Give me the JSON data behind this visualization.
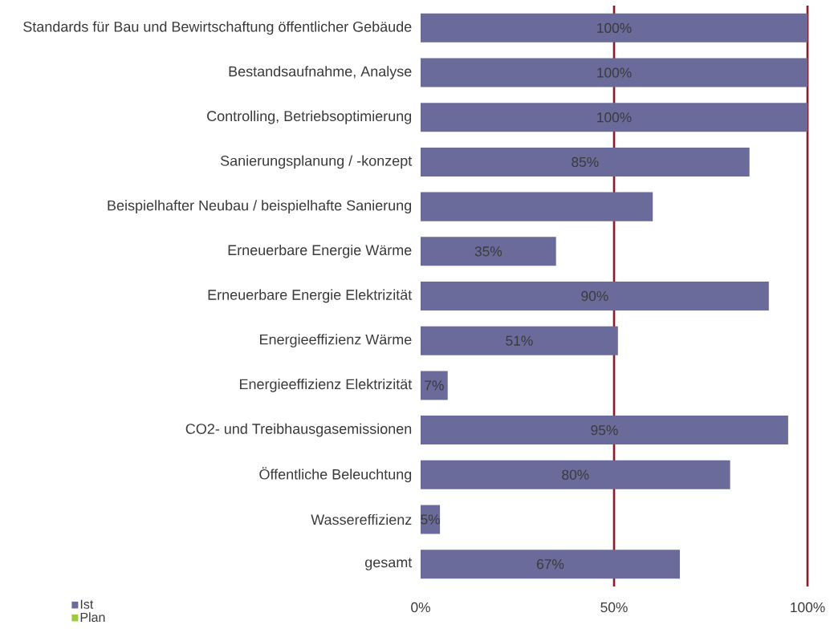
{
  "chart_data": {
    "type": "bar",
    "orientation": "horizontal",
    "categories": [
      "Standards für Bau und Bewirtschaftung öffentlicher Gebäude",
      "Bestandsaufnahme, Analyse",
      "Controlling, Betriebsoptimierung",
      "Sanierungsplanung / -konzept",
      "Beispielhafter Neubau / beispielhafte Sanierung",
      "Erneuerbare Energie Wärme",
      "Erneuerbare Energie Elektrizität",
      "Energieeffizienz Wärme",
      "Energieeffizienz Elektrizität",
      "CO2- und Treibhausgasemissionen",
      "Öffentliche Beleuchtung",
      "Wassereffizienz",
      "gesamt"
    ],
    "series": [
      {
        "name": "Ist",
        "color": "#6b6b9b",
        "values": [
          100,
          100,
          100,
          85,
          60,
          35,
          90,
          51,
          7,
          95,
          80,
          5,
          67
        ],
        "value_labels": [
          "100%",
          "100%",
          "100%",
          "85%",
          null,
          "35%",
          "90%",
          "51%",
          "7%",
          "95%",
          "80%",
          "5%",
          "67%"
        ]
      },
      {
        "name": "Plan",
        "color": "#9ccc3c",
        "values": [
          null,
          null,
          null,
          null,
          null,
          null,
          null,
          null,
          null,
          null,
          null,
          null,
          null
        ]
      }
    ],
    "xlim": [
      0,
      100
    ],
    "xticks": [
      {
        "value": 0,
        "label": "0%"
      },
      {
        "value": 50,
        "label": "50%"
      },
      {
        "value": 100,
        "label": "100%"
      }
    ],
    "ref_lines": [
      {
        "axis": "x",
        "value": 50,
        "color": "#8b1c2a"
      },
      {
        "axis": "x",
        "value": 100,
        "color": "#8b1c2a"
      }
    ],
    "legend": "bottom left"
  }
}
